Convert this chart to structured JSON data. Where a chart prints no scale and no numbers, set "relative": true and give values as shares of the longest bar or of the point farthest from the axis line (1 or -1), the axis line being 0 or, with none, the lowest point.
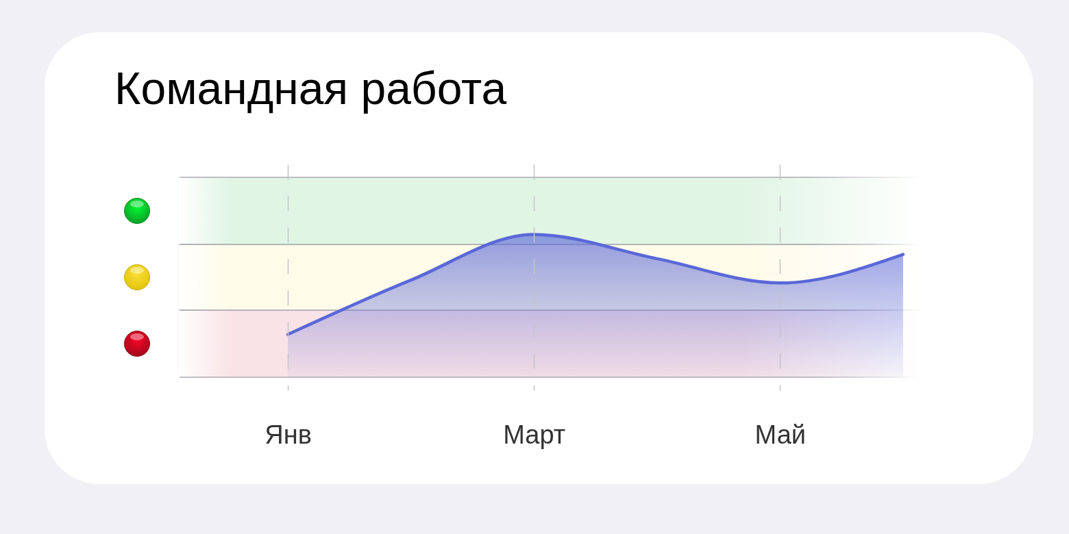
{
  "chart_data": {
    "type": "area",
    "title": "Командная работа",
    "relative": true,
    "categories": [
      "Янв",
      null,
      "Март",
      null,
      "Май",
      null
    ],
    "series": [
      {
        "color": "#5a67d8",
        "values": [
          0.3,
          0.68,
          1,
          0.83,
          0.66,
          0.86
        ]
      }
    ],
    "bands": [
      {
        "axis": "y",
        "from": 0,
        "to": 0.47,
        "color": "#f9e3e6"
      },
      {
        "axis": "y",
        "from": 0.47,
        "to": 0.93,
        "color": "#fefbe8"
      },
      {
        "axis": "y",
        "from": 0.93,
        "to": 1.4,
        "color": "#e0f5e4"
      }
    ],
    "grid": "x"
  }
}
